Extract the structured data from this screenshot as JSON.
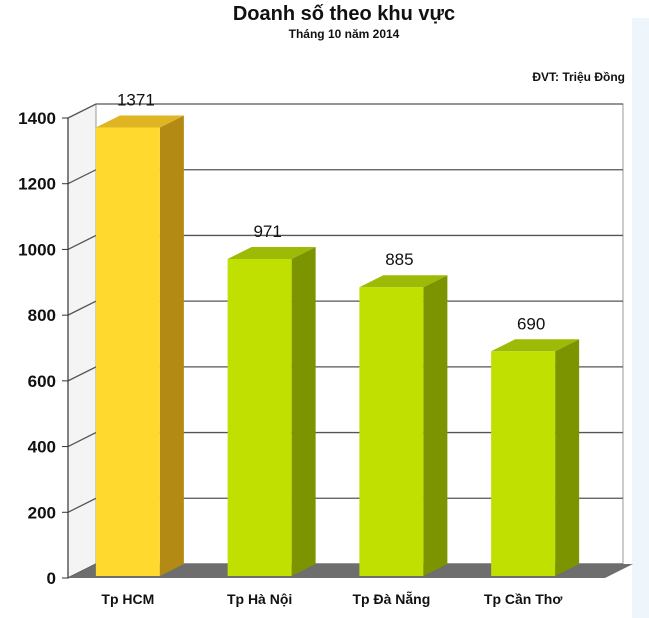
{
  "chart_data": {
    "type": "bar",
    "title": "Doanh số theo khu vực",
    "subtitle": "Tháng 10 năm 2014",
    "unit_note": "ĐVT: Triệu Đồng",
    "categories": [
      "Tp HCM",
      "Tp Hà Nội",
      "Tp Đà Nẵng",
      "Tp Cần Thơ"
    ],
    "values": [
      1371,
      971,
      885,
      690
    ],
    "data_labels": [
      "1371",
      "971",
      "885",
      "690"
    ],
    "ylim": [
      0,
      1400
    ],
    "yticks": [
      0,
      200,
      400,
      600,
      800,
      1000,
      1200,
      1400
    ],
    "grid": true,
    "three_d": true,
    "colors": {
      "highlight_front": "#FFD92E",
      "highlight_side": "#B38B14",
      "highlight_top": "#E0B524",
      "normal_front": "#BFE000",
      "normal_side": "#7C9400",
      "normal_top": "#9DBA06",
      "floor": "#6E6E6E",
      "wall": "#ffffff",
      "grid": "#555555"
    }
  }
}
